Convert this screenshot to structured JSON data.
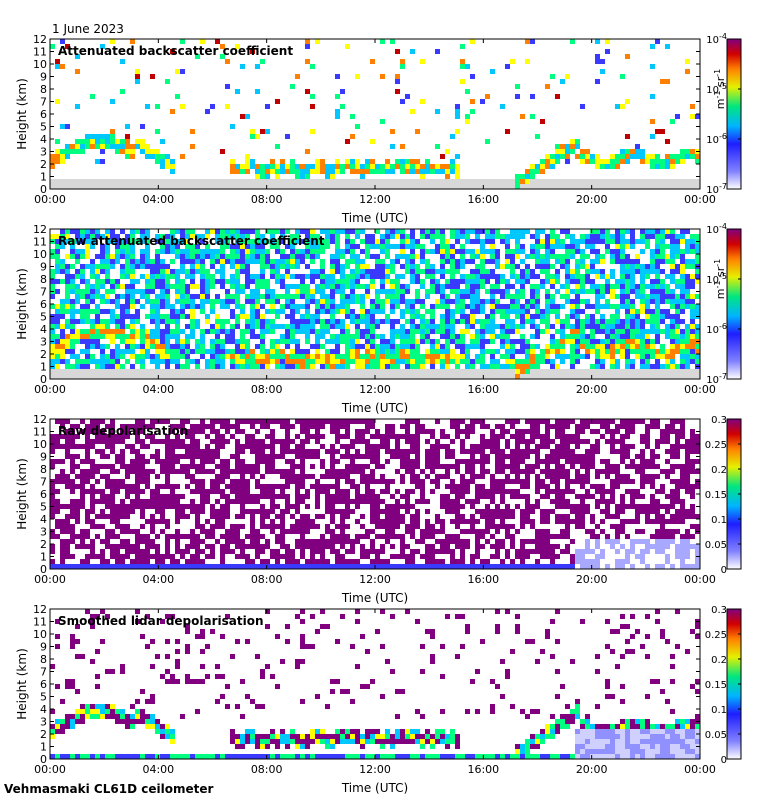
{
  "date_label": "1 June 2023",
  "instrument_label": "Vehmasmaki CL61D ceilometer",
  "colors": {
    "background_noise": "#d8d8d8",
    "scale": [
      "#ffffff",
      "#3a3aff",
      "#00c8ff",
      "#00ff80",
      "#ffff00",
      "#ff8000",
      "#c00000",
      "#800080"
    ]
  },
  "chart_data": [
    {
      "type": "heatmap",
      "title": "Attenuated backscatter coefficient",
      "xlabel": "Time (UTC)",
      "ylabel": "Height (km)",
      "x_ticks": [
        "00:00",
        "04:00",
        "08:00",
        "12:00",
        "16:00",
        "20:00",
        "00:00"
      ],
      "y_ticks": [
        "0",
        "1",
        "2",
        "3",
        "4",
        "5",
        "6",
        "7",
        "8",
        "9",
        "10",
        "11",
        "12"
      ],
      "ylim": [
        0,
        12
      ],
      "colorbar": {
        "scale": "log",
        "range": [
          1e-07,
          0.0001
        ],
        "unit_base": "m",
        "unit_exp1": "-1",
        "unit_sr": "sr",
        "unit_exp2": "-1",
        "ticks": [
          {
            "value": 1e-07,
            "base": "10",
            "exp": "-7"
          },
          {
            "value": 1e-06,
            "base": "10",
            "exp": "-6"
          },
          {
            "value": 1e-05,
            "base": "10",
            "exp": "-5"
          },
          {
            "value": 0.0001,
            "base": "10",
            "exp": "-4"
          }
        ]
      }
    },
    {
      "type": "heatmap",
      "title": "Raw attenuated backscatter coefficient",
      "xlabel": "Time (UTC)",
      "ylabel": "Height (km)",
      "x_ticks": [
        "00:00",
        "04:00",
        "08:00",
        "12:00",
        "16:00",
        "20:00",
        "00:00"
      ],
      "y_ticks": [
        "0",
        "1",
        "2",
        "3",
        "4",
        "5",
        "6",
        "7",
        "8",
        "9",
        "10",
        "11",
        "12"
      ],
      "ylim": [
        0,
        12
      ],
      "colorbar": {
        "scale": "log",
        "range": [
          1e-07,
          0.0001
        ],
        "unit_base": "m",
        "unit_exp1": "-1",
        "unit_sr": "sr",
        "unit_exp2": "-1",
        "ticks": [
          {
            "value": 1e-07,
            "base": "10",
            "exp": "-7"
          },
          {
            "value": 1e-06,
            "base": "10",
            "exp": "-6"
          },
          {
            "value": 1e-05,
            "base": "10",
            "exp": "-5"
          },
          {
            "value": 0.0001,
            "base": "10",
            "exp": "-4"
          }
        ]
      }
    },
    {
      "type": "heatmap",
      "title": "Raw depolarisation",
      "xlabel": "Time (UTC)",
      "ylabel": "Height (km)",
      "x_ticks": [
        "00:00",
        "04:00",
        "08:00",
        "12:00",
        "16:00",
        "20:00",
        "00:00"
      ],
      "y_ticks": [
        "0",
        "1",
        "2",
        "3",
        "4",
        "5",
        "6",
        "7",
        "8",
        "9",
        "10",
        "11",
        "12"
      ],
      "ylim": [
        0,
        12
      ],
      "colorbar": {
        "scale": "linear",
        "range": [
          0,
          0.3
        ],
        "ticks": [
          {
            "value": 0,
            "label": "0"
          },
          {
            "value": 0.05,
            "label": "0.05"
          },
          {
            "value": 0.1,
            "label": "0.1"
          },
          {
            "value": 0.15,
            "label": "0.15"
          },
          {
            "value": 0.2,
            "label": "0.2"
          },
          {
            "value": 0.25,
            "label": "0.25"
          },
          {
            "value": 0.3,
            "label": "0.3"
          }
        ]
      }
    },
    {
      "type": "heatmap",
      "title": "Smoothed lidar depolarisation",
      "xlabel": "Time (UTC)",
      "ylabel": "Height (km)",
      "x_ticks": [
        "00:00",
        "04:00",
        "08:00",
        "12:00",
        "16:00",
        "20:00",
        "00:00"
      ],
      "y_ticks": [
        "0",
        "1",
        "2",
        "3",
        "4",
        "5",
        "6",
        "7",
        "8",
        "9",
        "10",
        "11",
        "12"
      ],
      "ylim": [
        0,
        12
      ],
      "colorbar": {
        "scale": "linear",
        "range": [
          0,
          0.3
        ],
        "ticks": [
          {
            "value": 0,
            "label": "0"
          },
          {
            "value": 0.05,
            "label": "0.05"
          },
          {
            "value": 0.1,
            "label": "0.1"
          },
          {
            "value": 0.15,
            "label": "0.15"
          },
          {
            "value": 0.2,
            "label": "0.2"
          },
          {
            "value": 0.25,
            "label": "0.25"
          },
          {
            "value": 0.3,
            "label": "0.3"
          }
        ]
      }
    }
  ]
}
